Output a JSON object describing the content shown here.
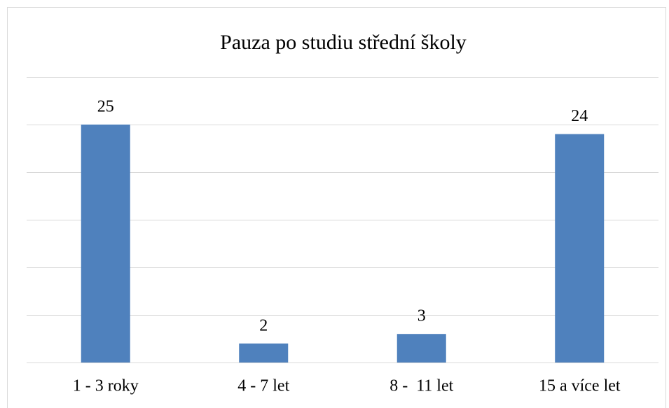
{
  "chart_data": {
    "type": "bar",
    "title": "Pauza po studiu střední školy",
    "categories": [
      "1 - 3 roky",
      "4 - 7 let",
      "8 -  11 let",
      "15 a více let"
    ],
    "values": [
      25,
      2,
      3,
      24
    ],
    "color": "#4f81bd",
    "ylim": [
      0,
      30
    ],
    "yticks": [
      0,
      5,
      10,
      15,
      20,
      25,
      30
    ],
    "grid": true,
    "data_labels": true
  }
}
